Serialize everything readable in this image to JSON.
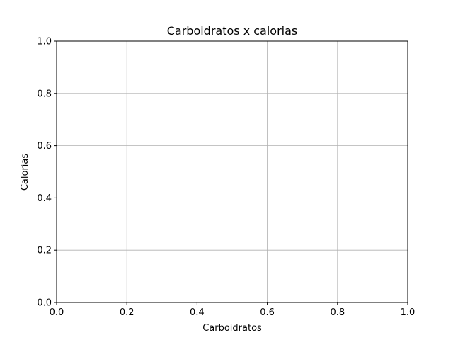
{
  "chart_data": {
    "type": "scatter",
    "title": "Carboidratos x calorias",
    "xlabel": "Carboidratos",
    "ylabel": "Calorias",
    "xlim": [
      0.0,
      1.0
    ],
    "ylim": [
      0.0,
      1.0
    ],
    "xticks": [
      0.0,
      0.2,
      0.4,
      0.6,
      0.8,
      1.0
    ],
    "yticks": [
      0.0,
      0.2,
      0.4,
      0.6,
      0.8,
      1.0
    ],
    "xtick_labels": [
      "0.0",
      "0.2",
      "0.4",
      "0.6",
      "0.8",
      "1.0"
    ],
    "ytick_labels": [
      "0.0",
      "0.2",
      "0.4",
      "0.6",
      "0.8",
      "1.0"
    ],
    "grid": true,
    "series": [
      {
        "x": [],
        "y": []
      }
    ]
  }
}
